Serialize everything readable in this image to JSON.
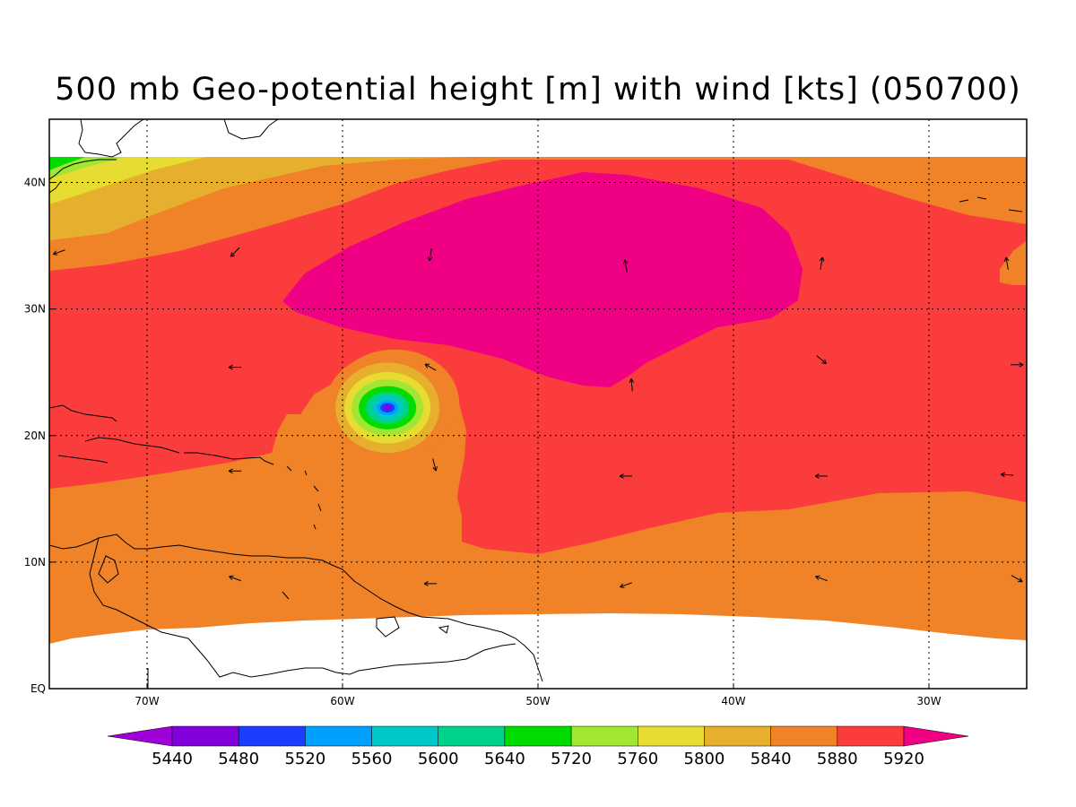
{
  "title": "500 mb Geo-potential height [m] with wind [kts] (050700)",
  "lon_range": [
    -75,
    -25
  ],
  "lat_range": [
    0,
    45
  ],
  "data_lat_range": [
    4,
    42
  ],
  "lon_ticks": [
    {
      "value": -70,
      "label": "70W"
    },
    {
      "value": -60,
      "label": "60W"
    },
    {
      "value": -50,
      "label": "50W"
    },
    {
      "value": -40,
      "label": "40W"
    },
    {
      "value": -30,
      "label": "30W"
    }
  ],
  "lat_ticks": [
    {
      "value": 0,
      "label": "EQ"
    },
    {
      "value": 10,
      "label": "10N"
    },
    {
      "value": 20,
      "label": "20N"
    },
    {
      "value": 30,
      "label": "30N"
    },
    {
      "value": 40,
      "label": "40N"
    }
  ],
  "colorbar": {
    "levels": [
      "5440",
      "5480",
      "5520",
      "5560",
      "5600",
      "5640",
      "5720",
      "5760",
      "5800",
      "5840",
      "5880",
      "5920"
    ],
    "colors": [
      "#a000d8",
      "#8200dc",
      "#1e3cff",
      "#00a0ff",
      "#00c8c8",
      "#00d28c",
      "#00dc00",
      "#a0e632",
      "#e6dc32",
      "#e6af2d",
      "#f08228",
      "#fa3c3c",
      "#f00082"
    ]
  },
  "contour_fill": {
    "c5840": "#e6af2d",
    "c5880": "#f08228",
    "c5920": "#fa3c3c",
    "c5960": "#f00082",
    "c5800": "#e6dc32",
    "c5760": "#a0e632",
    "c5720": "#00dc00",
    "c5640": "#00d28c",
    "c5600": "#00c8c8",
    "c5560": "#00a0ff",
    "c5520": "#1e3cff",
    "c5480": "#8200dc"
  },
  "storm_center": {
    "lon": -57.7,
    "lat": 22.2
  },
  "wind_vectors": [
    {
      "lon": -74.5,
      "lat": 34.5,
      "angle": 200
    },
    {
      "lon": -65.5,
      "lat": 34.5,
      "angle": 225
    },
    {
      "lon": -55.5,
      "lat": 34.3,
      "angle": 260
    },
    {
      "lon": -45.5,
      "lat": 33.4,
      "angle": 100
    },
    {
      "lon": -35.5,
      "lat": 33.6,
      "angle": 80
    },
    {
      "lon": -26.0,
      "lat": 33.6,
      "angle": 100
    },
    {
      "lon": -65.5,
      "lat": 25.4,
      "angle": 180
    },
    {
      "lon": -55.5,
      "lat": 25.4,
      "angle": 150
    },
    {
      "lon": -45.2,
      "lat": 24.0,
      "angle": 95
    },
    {
      "lon": -35.5,
      "lat": 26.0,
      "angle": 320
    },
    {
      "lon": -25.5,
      "lat": 25.6,
      "angle": 0
    },
    {
      "lon": -65.5,
      "lat": 17.2,
      "angle": 180
    },
    {
      "lon": -55.3,
      "lat": 17.7,
      "angle": 285
    },
    {
      "lon": -45.5,
      "lat": 16.8,
      "angle": 180
    },
    {
      "lon": -35.5,
      "lat": 16.8,
      "angle": 180
    },
    {
      "lon": -26.0,
      "lat": 16.9,
      "angle": 175
    },
    {
      "lon": -65.5,
      "lat": 8.7,
      "angle": 160
    },
    {
      "lon": -55.5,
      "lat": 8.3,
      "angle": 180
    },
    {
      "lon": -45.5,
      "lat": 8.2,
      "angle": 200
    },
    {
      "lon": -35.5,
      "lat": 8.7,
      "angle": 160
    },
    {
      "lon": -25.5,
      "lat": 8.7,
      "angle": 330
    }
  ]
}
